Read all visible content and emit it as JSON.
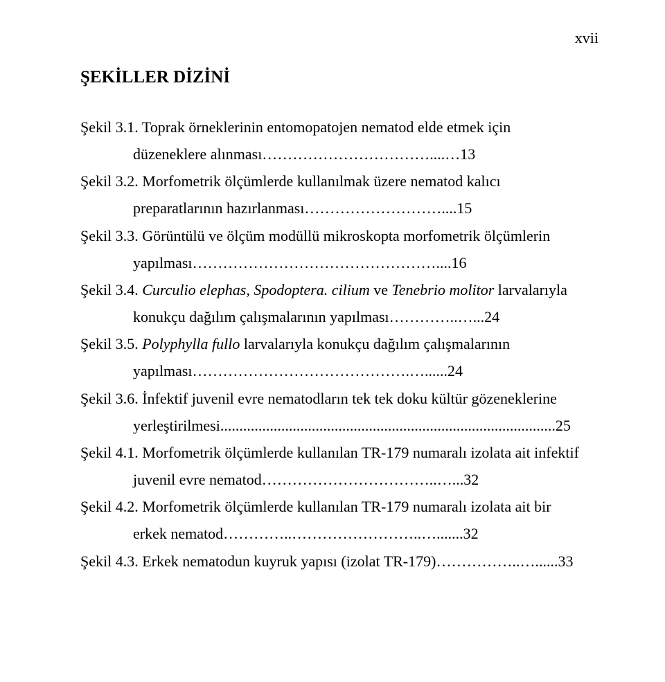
{
  "page_number": "xvii",
  "heading": "ŞEKİLLER DİZİNİ",
  "entries": [
    {
      "label": "Şekil 3.1.",
      "line1": "Şekil 3.1. Toprak örneklerinin entomopatojen nematod elde etmek için",
      "line2": "düzeneklere alınması……………………………....…13",
      "page": ""
    },
    {
      "label": "Şekil 3.2.",
      "line1": "Şekil 3.2. Morfometrik ölçümlerde kullanılmak üzere nematod kalıcı",
      "line2": "preparatlarının hazırlanması………………………....15",
      "page": ""
    },
    {
      "label": "Şekil 3.3.",
      "line1": "Şekil 3.3. Görüntülü ve ölçüm modüllü mikroskopta morfometrik ölçümlerin",
      "line2": "yapılması…………………………………………....16",
      "page": ""
    },
    {
      "label": "Şekil 3.4.",
      "line1_pre": "Şekil 3.4. ",
      "italic1": "Curculio elephas, Spodoptera. cilium",
      "line1_post": " ve ",
      "italic2": "Tenebrio molitor",
      "line1_end": "  larvalarıyla",
      "line2": "konukçu dağılım çalışmalarının yapılması…………..…...24",
      "page": ""
    },
    {
      "label": "Şekil 3.5.",
      "line1_pre": "Şekil 3.5. ",
      "italic1": "Polyphylla fullo",
      "line1_post": " larvalarıyla konukçu dağılım çalışmalarının",
      "line2": "yapılması…………………………………….…......24",
      "page": ""
    },
    {
      "label": "Şekil 3.6.",
      "line1": "Şekil 3.6. İnfektif juvenil evre nematodların tek tek doku kültür gözeneklerine",
      "line2": "yerleştirilmesi........................................................................................25",
      "page": ""
    },
    {
      "label": "Şekil 4.1.",
      "line1": "Şekil 4.1. Morfometrik ölçümlerde kullanılan TR-179 numaralı izolata  ait infektif",
      "line2": "juvenil evre nematod……………………………..…...32",
      "page": ""
    },
    {
      "label": "Şekil 4.2.",
      "line1": "Şekil 4.2. Morfometrik ölçümlerde kullanılan TR-179 numaralı izolata ait bir",
      "line2": "erkek nematod…………..……………………..….......32",
      "page": ""
    },
    {
      "label": "Şekil 4.3.",
      "line1": "Şekil 4.3. Erkek nematodun kuyruk yapısı (izolat TR-179)……………..…......33",
      "line2": "",
      "page": ""
    }
  ]
}
